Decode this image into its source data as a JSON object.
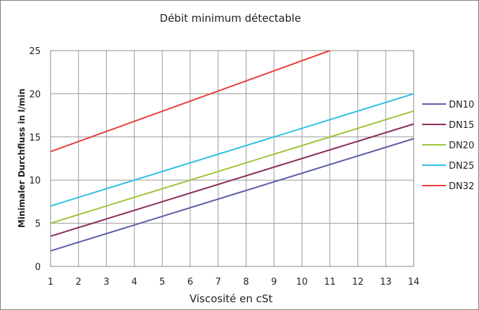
{
  "chart_data": {
    "type": "line",
    "title": "Débit minimum détectable",
    "xlabel": "Viscosité en cSt",
    "ylabel": "Minimaler Durchfluss in l/min",
    "xlim": [
      1,
      14
    ],
    "ylim": [
      0,
      25
    ],
    "xticks": [
      "1",
      "2",
      "3",
      "4",
      "5",
      "6",
      "7",
      "8",
      "9",
      "10",
      "11",
      "12",
      "13",
      "14"
    ],
    "yticks": [
      "0",
      "5",
      "10",
      "15",
      "20",
      "25"
    ],
    "grid": true,
    "legend_position": "right",
    "series": [
      {
        "name": "DN10",
        "color": "#5b5ea6",
        "x": [
          1,
          14
        ],
        "y": [
          1.8,
          14.8
        ]
      },
      {
        "name": "DN15",
        "color": "#8b2a5c",
        "x": [
          1,
          14
        ],
        "y": [
          3.5,
          16.5
        ]
      },
      {
        "name": "DN20",
        "color": "#9bc43c",
        "x": [
          1,
          14
        ],
        "y": [
          5,
          18
        ]
      },
      {
        "name": "DN25",
        "color": "#2ec0e4",
        "x": [
          1,
          14
        ],
        "y": [
          7,
          20
        ]
      },
      {
        "name": "DN32",
        "color": "#e8403a",
        "x": [
          1,
          11
        ],
        "y": [
          13.3,
          25
        ]
      }
    ]
  }
}
